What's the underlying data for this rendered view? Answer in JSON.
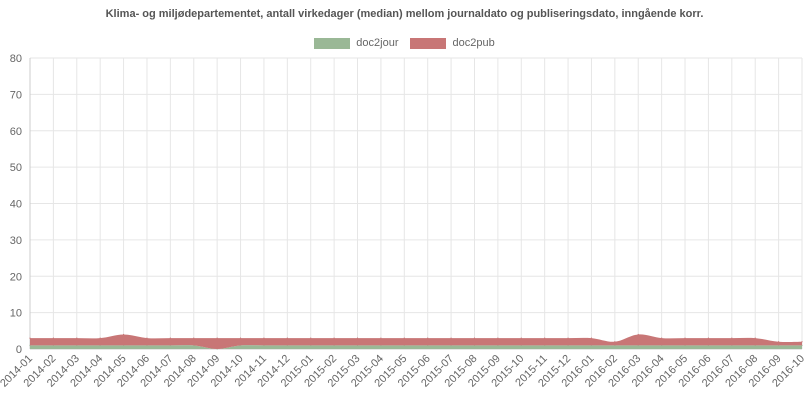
{
  "chart_data": {
    "type": "area",
    "stacked": true,
    "title": "Klima- og miljødepartementet, antall virkedager (median) mellom journaldato og publiseringsdato, inngående korr.",
    "xlabel": "",
    "ylabel": "",
    "ylim": [
      0,
      80
    ],
    "yticks": [
      0,
      10,
      20,
      30,
      40,
      50,
      60,
      70,
      80
    ],
    "grid": true,
    "legend_position": "top-center",
    "categories": [
      "2014-01",
      "2014-02",
      "2014-03",
      "2014-04",
      "2014-05",
      "2014-06",
      "2014-07",
      "2014-08",
      "2014-09",
      "2014-10",
      "2014-11",
      "2014-12",
      "2015-01",
      "2015-02",
      "2015-03",
      "2015-04",
      "2015-05",
      "2015-06",
      "2015-07",
      "2015-08",
      "2015-09",
      "2015-10",
      "2015-11",
      "2015-12",
      "2016-01",
      "2016-02",
      "2016-03",
      "2016-04",
      "2016-05",
      "2016-06",
      "2016-07",
      "2016-08",
      "2016-09",
      "2016-10"
    ],
    "series": [
      {
        "name": "doc2jour",
        "color": "#9ab896",
        "values": [
          1,
          1,
          1,
          1,
          1,
          1,
          1,
          1,
          0,
          1,
          1,
          1,
          1,
          1,
          1,
          1,
          1,
          1,
          1,
          1,
          1,
          1,
          1,
          1,
          1,
          1,
          1,
          1,
          1,
          1,
          1,
          1,
          1,
          1
        ]
      },
      {
        "name": "doc2pub",
        "color": "#c87676",
        "values": [
          2,
          2,
          2,
          2,
          3,
          2,
          2,
          2,
          3,
          2,
          2,
          2,
          2,
          2,
          2,
          2,
          2,
          2,
          2,
          2,
          2,
          2,
          2,
          2,
          2,
          1,
          3,
          2,
          2,
          2,
          2,
          2,
          1,
          1
        ]
      }
    ]
  }
}
